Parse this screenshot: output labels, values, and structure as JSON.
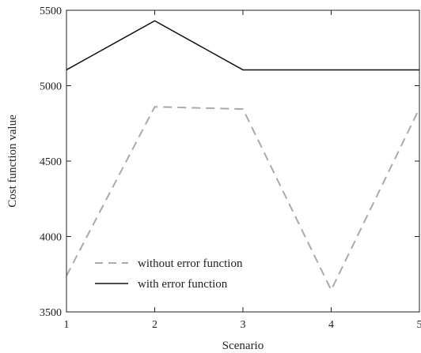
{
  "chart_data": {
    "type": "line",
    "x": [
      1,
      2,
      3,
      4,
      5
    ],
    "series": [
      {
        "name": "without error function",
        "values": [
          3740,
          4860,
          4845,
          3645,
          4850
        ],
        "color": "#aaaaaa",
        "style": "dashed"
      },
      {
        "name": "with error function",
        "values": [
          5105,
          5430,
          5105,
          5105,
          5105
        ],
        "color": "#111111",
        "style": "solid"
      }
    ],
    "xlabel": "Scenario",
    "ylabel": "Cost function value",
    "xlim": [
      1,
      5
    ],
    "ylim": [
      3500,
      5500
    ],
    "xticks": [
      "1",
      "2",
      "3",
      "4",
      "5"
    ],
    "yticks": [
      "3500",
      "4000",
      "4500",
      "5000",
      "5500"
    ],
    "grid": false,
    "legend": "lower-left"
  }
}
